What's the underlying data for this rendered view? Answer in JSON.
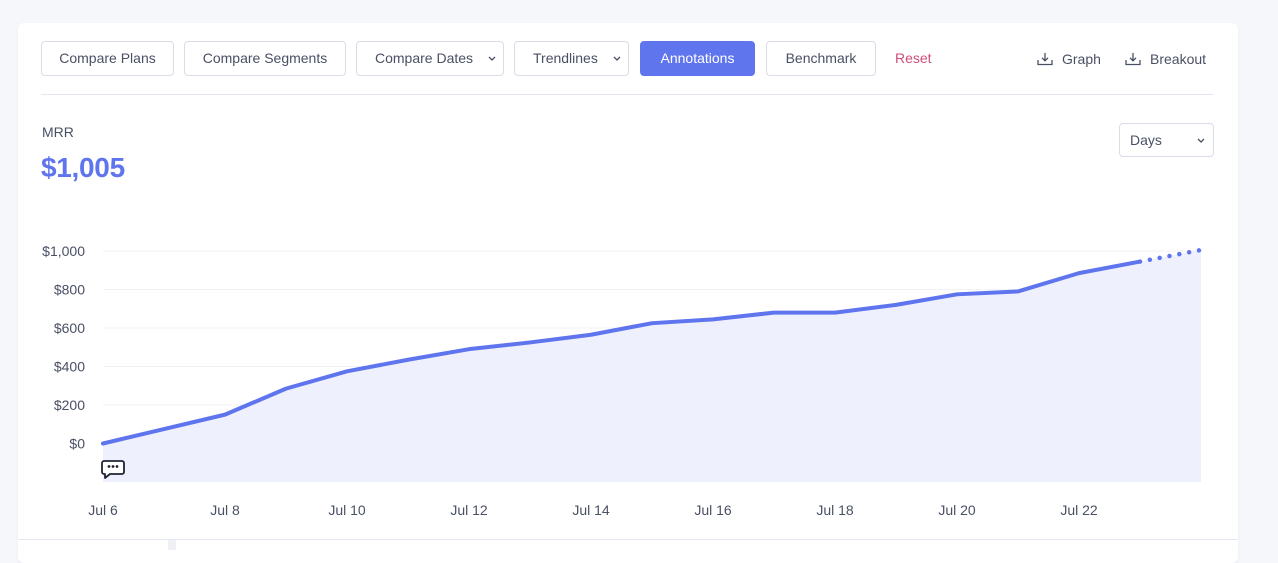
{
  "toolbar": {
    "compare_plans": "Compare Plans",
    "compare_segments": "Compare Segments",
    "compare_dates": "Compare Dates",
    "trendlines": "Trendlines",
    "annotations": "Annotations",
    "benchmark": "Benchmark",
    "reset": "Reset",
    "graph_download": "Graph",
    "breakout_download": "Breakout"
  },
  "metric": {
    "label": "MRR",
    "value": "$1,005"
  },
  "period": {
    "selected": "Days"
  },
  "colors": {
    "accent": "#5f75ee",
    "area_fill": "#eef1fd",
    "reset": "#d0507a"
  },
  "chart_data": {
    "type": "area",
    "x": [
      "Jul 6",
      "Jul 7",
      "Jul 8",
      "Jul 9",
      "Jul 10",
      "Jul 11",
      "Jul 12",
      "Jul 13",
      "Jul 14",
      "Jul 15",
      "Jul 16",
      "Jul 17",
      "Jul 18",
      "Jul 19",
      "Jul 20",
      "Jul 21",
      "Jul 22",
      "Jul 23",
      "Jul 24"
    ],
    "values": [
      0,
      75,
      150,
      285,
      375,
      435,
      490,
      525,
      565,
      625,
      645,
      680,
      680,
      720,
      775,
      790,
      885,
      945,
      1005
    ],
    "projected_from_index": 17,
    "x_tick_labels": [
      "Jul 6",
      "Jul 8",
      "Jul 10",
      "Jul 12",
      "Jul 14",
      "Jul 16",
      "Jul 18",
      "Jul 20",
      "Jul 22"
    ],
    "y_tick_labels": [
      "$0",
      "$200",
      "$400",
      "$600",
      "$800",
      "$1,000"
    ],
    "y_ticks": [
      0,
      200,
      400,
      600,
      800,
      1000
    ],
    "ylim": [
      -200,
      1000
    ],
    "grid": true,
    "annotations": [
      {
        "x_index": 0,
        "icon": "comment-icon"
      }
    ]
  }
}
